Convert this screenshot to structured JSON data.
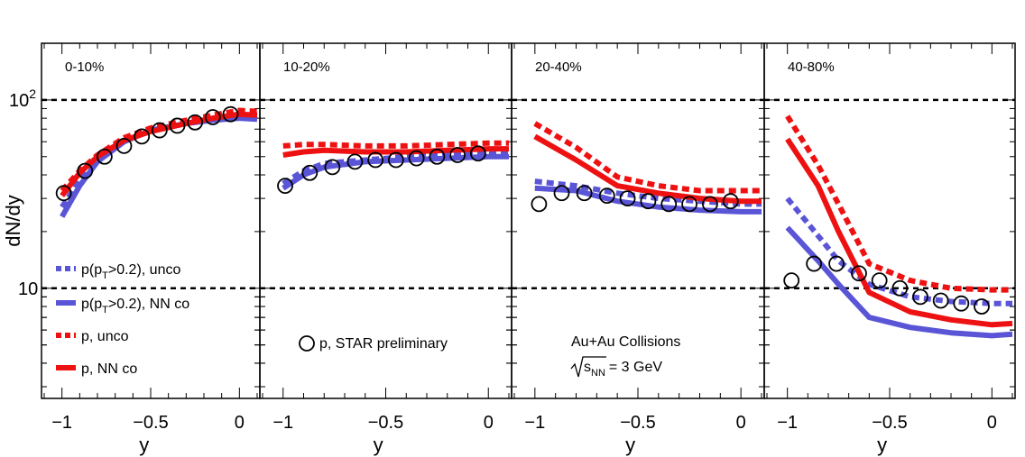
{
  "chart_data": {
    "type": "line",
    "ylabel": "dN/dy",
    "xlabel": "y",
    "xlim": [
      -1.1,
      0.1
    ],
    "ylim": [
      2.6,
      200
    ],
    "yscale": "log",
    "x_ticks": [
      {
        "v": -1,
        "label": "−1"
      },
      {
        "v": -0.5,
        "label": "−0.5"
      },
      {
        "v": 0,
        "label": "0"
      }
    ],
    "y_ticks": [
      {
        "v": 10,
        "label": "10"
      },
      {
        "v": 100,
        "label": "10",
        "sup": "2"
      }
    ],
    "ref_lines": [
      10,
      100
    ],
    "colors": {
      "blue": "#5a55d6",
      "red": "#ee1111",
      "black": "#000000"
    },
    "legend": [
      {
        "key": "blue_unco",
        "text": "p(p",
        "sub": "T",
        "rest": ">0.2), unco",
        "color": "#5a55d6",
        "dashed": true
      },
      {
        "key": "blue_co",
        "text": "p(p",
        "sub": "T",
        "rest": ">0.2), NN co",
        "color": "#5a55d6",
        "dashed": false
      },
      {
        "key": "red_unco",
        "text": "p, unco",
        "sub": "",
        "rest": "",
        "color": "#ee1111",
        "dashed": true
      },
      {
        "key": "red_co",
        "text": "p, NN co",
        "sub": "",
        "rest": "",
        "color": "#ee1111",
        "dashed": false
      }
    ],
    "star_legend": "p, STAR preliminary",
    "annotation": {
      "line1": "Au+Au Collisions",
      "sqrt_s": "s",
      "sqrt_sub": "NN",
      "energy": "= 3 GeV"
    },
    "panels": [
      {
        "label": "0-10%",
        "series": [
          {
            "name": "p(pT>0.2), unco",
            "color": "#5a55d6",
            "dashed": true,
            "x": [
              -1.0,
              -0.9,
              -0.8,
              -0.65,
              -0.5,
              -0.3,
              -0.15,
              0.0,
              0.1
            ],
            "y": [
              27,
              38,
              50,
              62,
              70,
              76,
              80,
              84,
              83
            ]
          },
          {
            "name": "p(pT>0.2), NN co",
            "color": "#5a55d6",
            "dashed": false,
            "x": [
              -1.0,
              -0.9,
              -0.8,
              -0.65,
              -0.5,
              -0.3,
              -0.15,
              0.0,
              0.1
            ],
            "y": [
              24,
              35,
              47,
              60,
              69,
              75,
              78,
              80,
              79
            ]
          },
          {
            "name": "p, unco",
            "color": "#ee1111",
            "dashed": true,
            "x": [
              -1.0,
              -0.9,
              -0.8,
              -0.65,
              -0.5,
              -0.3,
              -0.15,
              0.0,
              0.1
            ],
            "y": [
              33,
              42,
              51,
              63,
              71,
              78,
              83,
              88,
              87
            ]
          },
          {
            "name": "p, NN co",
            "color": "#ee1111",
            "dashed": false,
            "x": [
              -1.0,
              -0.9,
              -0.8,
              -0.65,
              -0.5,
              -0.3,
              -0.15,
              0.0,
              0.1
            ],
            "y": [
              31,
              41,
              50,
              61,
              68,
              75,
              80,
              84,
              83
            ]
          }
        ],
        "star": {
          "x": [
            -0.99,
            -0.87,
            -0.76,
            -0.65,
            -0.55,
            -0.45,
            -0.35,
            -0.25,
            -0.15,
            -0.05
          ],
          "y": [
            32,
            42,
            50,
            57,
            64,
            69,
            73,
            76,
            81,
            84
          ]
        }
      },
      {
        "label": "10-20%",
        "series": [
          {
            "name": "p(pT>0.2), unco",
            "color": "#5a55d6",
            "dashed": true,
            "x": [
              -1.0,
              -0.9,
              -0.8,
              -0.6,
              -0.4,
              -0.2,
              0.0,
              0.1
            ],
            "y": [
              36,
              42,
              46,
              48,
              50,
              51,
              52,
              52
            ]
          },
          {
            "name": "p(pT>0.2), NN co",
            "color": "#5a55d6",
            "dashed": false,
            "x": [
              -1.0,
              -0.9,
              -0.8,
              -0.6,
              -0.4,
              -0.2,
              0.0,
              0.1
            ],
            "y": [
              34,
              40,
              44,
              47,
              48,
              49,
              50,
              50
            ]
          },
          {
            "name": "p, unco",
            "color": "#ee1111",
            "dashed": true,
            "x": [
              -1.0,
              -0.9,
              -0.8,
              -0.6,
              -0.4,
              -0.2,
              0.0,
              0.1
            ],
            "y": [
              57,
              58,
              58,
              57,
              57,
              58,
              59,
              59
            ]
          },
          {
            "name": "p, NN co",
            "color": "#ee1111",
            "dashed": false,
            "x": [
              -1.0,
              -0.9,
              -0.8,
              -0.6,
              -0.4,
              -0.2,
              0.0,
              0.1
            ],
            "y": [
              51,
              53,
              54,
              53,
              53,
              54,
              55,
              55
            ]
          }
        ],
        "star": {
          "x": [
            -0.99,
            -0.87,
            -0.76,
            -0.65,
            -0.55,
            -0.45,
            -0.35,
            -0.25,
            -0.15,
            -0.05
          ],
          "y": [
            35,
            41,
            44,
            47,
            48,
            48,
            49,
            50,
            51,
            52
          ]
        }
      },
      {
        "label": "20-40%",
        "series": [
          {
            "name": "p(pT>0.2), unco",
            "color": "#5a55d6",
            "dashed": true,
            "x": [
              -1.0,
              -0.8,
              -0.6,
              -0.4,
              -0.2,
              0.0,
              0.1
            ],
            "y": [
              37,
              35,
              32,
              30,
              29,
              28,
              28
            ]
          },
          {
            "name": "p(pT>0.2), NN co",
            "color": "#5a55d6",
            "dashed": false,
            "x": [
              -1.0,
              -0.8,
              -0.6,
              -0.4,
              -0.2,
              0.0,
              0.1
            ],
            "y": [
              34,
              33,
              29,
              27,
              26,
              25.5,
              25.5
            ]
          },
          {
            "name": "p, unco",
            "color": "#ee1111",
            "dashed": true,
            "x": [
              -1.0,
              -0.8,
              -0.6,
              -0.4,
              -0.2,
              0.0,
              0.1
            ],
            "y": [
              75,
              56,
              39,
              35,
              33,
              33,
              33
            ]
          },
          {
            "name": "p, NN co",
            "color": "#ee1111",
            "dashed": false,
            "x": [
              -1.0,
              -0.8,
              -0.6,
              -0.4,
              -0.2,
              0.0,
              0.1
            ],
            "y": [
              64,
              48,
              35,
              32,
              30,
              29,
              29
            ]
          }
        ],
        "star": {
          "x": [
            -0.98,
            -0.87,
            -0.76,
            -0.65,
            -0.55,
            -0.45,
            -0.35,
            -0.25,
            -0.15,
            -0.05
          ],
          "y": [
            28,
            32,
            32,
            31,
            30,
            29,
            28,
            28,
            28,
            29
          ]
        }
      },
      {
        "label": "40-80%",
        "series": [
          {
            "name": "p(pT>0.2), unco",
            "color": "#5a55d6",
            "dashed": true,
            "x": [
              -1.0,
              -0.85,
              -0.75,
              -0.6,
              -0.4,
              -0.2,
              0.0,
              0.1
            ],
            "y": [
              30,
              19,
              14,
              10.5,
              9,
              8.5,
              8.3,
              8.3
            ]
          },
          {
            "name": "p(pT>0.2), NN co",
            "color": "#5a55d6",
            "dashed": false,
            "x": [
              -1.0,
              -0.85,
              -0.75,
              -0.6,
              -0.4,
              -0.2,
              0.0,
              0.1
            ],
            "y": [
              21,
              14,
              10.5,
              7,
              6.2,
              5.8,
              5.6,
              5.7
            ]
          },
          {
            "name": "p, unco",
            "color": "#ee1111",
            "dashed": true,
            "x": [
              -1.0,
              -0.85,
              -0.75,
              -0.6,
              -0.4,
              -0.2,
              0.0,
              0.1
            ],
            "y": [
              82,
              45,
              28,
              13.5,
              11,
              10,
              9.8,
              9.8
            ]
          },
          {
            "name": "p, NN co",
            "color": "#ee1111",
            "dashed": false,
            "x": [
              -1.0,
              -0.85,
              -0.75,
              -0.6,
              -0.4,
              -0.2,
              0.0,
              0.1
            ],
            "y": [
              62,
              35,
              20,
              9.5,
              7.5,
              6.8,
              6.4,
              6.5
            ]
          }
        ],
        "star": {
          "x": [
            -0.98,
            -0.87,
            -0.76,
            -0.65,
            -0.55,
            -0.45,
            -0.35,
            -0.25,
            -0.15,
            -0.05
          ],
          "y": [
            11,
            13.5,
            13.5,
            12,
            11,
            10,
            9,
            8.6,
            8.3,
            8.0
          ]
        }
      }
    ]
  }
}
